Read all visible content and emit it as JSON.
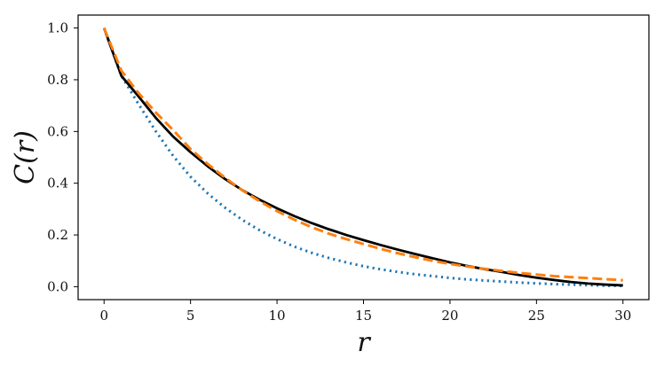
{
  "chart_data": {
    "type": "line",
    "title": "",
    "xlabel": "r",
    "ylabel": "C(r)",
    "xlim": [
      -1.5,
      31.5
    ],
    "ylim": [
      -0.05,
      1.05
    ],
    "xticks": [
      0,
      5,
      10,
      15,
      20,
      25,
      30
    ],
    "yticks": [
      0.0,
      0.2,
      0.4,
      0.6,
      0.8,
      1.0
    ],
    "xtick_labels": [
      "0",
      "5",
      "10",
      "15",
      "20",
      "25",
      "30"
    ],
    "ytick_labels": [
      "0.0",
      "0.2",
      "0.4",
      "0.6",
      "0.8",
      "1.0"
    ],
    "grid": false,
    "legend": "none",
    "series": [
      {
        "style": "solid",
        "color": "#000000",
        "x": [
          0,
          1,
          2,
          3,
          4,
          5,
          6,
          7,
          8,
          9,
          10,
          11,
          12,
          13,
          14,
          15,
          16,
          17,
          18,
          19,
          20,
          21,
          22,
          23,
          24,
          25,
          26,
          27,
          28,
          29,
          30
        ],
        "y": [
          1.0,
          0.815,
          0.735,
          0.652,
          0.58,
          0.52,
          0.465,
          0.416,
          0.373,
          0.336,
          0.303,
          0.273,
          0.246,
          0.222,
          0.2,
          0.18,
          0.161,
          0.143,
          0.126,
          0.11,
          0.094,
          0.08,
          0.068,
          0.057,
          0.045,
          0.035,
          0.026,
          0.018,
          0.012,
          0.008,
          0.005
        ]
      },
      {
        "style": "dashed",
        "color": "#ff7f0e",
        "x": [
          0,
          1,
          2,
          3,
          4,
          5,
          6,
          7,
          8,
          9,
          10,
          11,
          12,
          13,
          14,
          15,
          16,
          17,
          18,
          19,
          20,
          21,
          22,
          23,
          24,
          25,
          26,
          27,
          28,
          29,
          30
        ],
        "y": [
          1.0,
          0.835,
          0.748,
          0.673,
          0.605,
          0.532,
          0.474,
          0.421,
          0.372,
          0.33,
          0.292,
          0.259,
          0.23,
          0.205,
          0.184,
          0.165,
          0.146,
          0.129,
          0.114,
          0.1,
          0.088,
          0.078,
          0.069,
          0.061,
          0.053,
          0.047,
          0.041,
          0.037,
          0.033,
          0.029,
          0.025
        ]
      },
      {
        "style": "dotted",
        "color": "#1f77b4",
        "x": [
          0,
          1,
          2,
          3,
          4,
          5,
          6,
          7,
          8,
          9,
          10,
          11,
          12,
          13,
          14,
          15,
          16,
          17,
          18,
          19,
          20,
          21,
          22,
          23,
          24,
          25,
          26,
          27,
          28,
          29,
          30
        ],
        "y": [
          1.0,
          0.815,
          0.705,
          0.6,
          0.505,
          0.425,
          0.36,
          0.305,
          0.258,
          0.218,
          0.184,
          0.155,
          0.131,
          0.111,
          0.094,
          0.079,
          0.067,
          0.057,
          0.048,
          0.041,
          0.034,
          0.028,
          0.024,
          0.02,
          0.016,
          0.013,
          0.01,
          0.008,
          0.006,
          0.004,
          0.003
        ]
      }
    ]
  }
}
